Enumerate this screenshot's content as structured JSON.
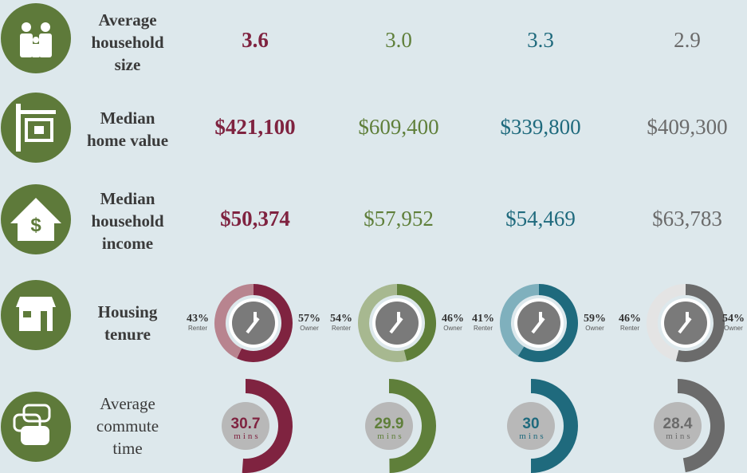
{
  "rows": [
    {
      "label": "Average household size",
      "values": [
        "3.6",
        "3.0",
        "3.3",
        "2.9"
      ]
    },
    {
      "label": "Median home value",
      "values": [
        "$421,100",
        "$609,400",
        "$339,800",
        "$409,300"
      ]
    },
    {
      "label": "Median household income",
      "values": [
        "$50,374",
        "$57,952",
        "$54,469",
        "$63,783"
      ]
    }
  ],
  "tenure": {
    "label": "Housing tenure",
    "renter_word": "Renter",
    "owner_word": "Owner",
    "columns": [
      {
        "renter": 43,
        "renter_label": "43%",
        "owner": 57,
        "owner_label": "57%"
      },
      {
        "renter": 54,
        "renter_label": "54%",
        "owner": 46,
        "owner_label": "46%"
      },
      {
        "renter": 41,
        "renter_label": "41%",
        "owner": 59,
        "owner_label": "59%"
      },
      {
        "renter": 46,
        "renter_label": "46%",
        "owner": 54,
        "owner_label": "54%"
      }
    ]
  },
  "commute": {
    "label": "Average commute time",
    "unit": "mins",
    "values": [
      30.7,
      29.9,
      30,
      28.4
    ]
  }
}
